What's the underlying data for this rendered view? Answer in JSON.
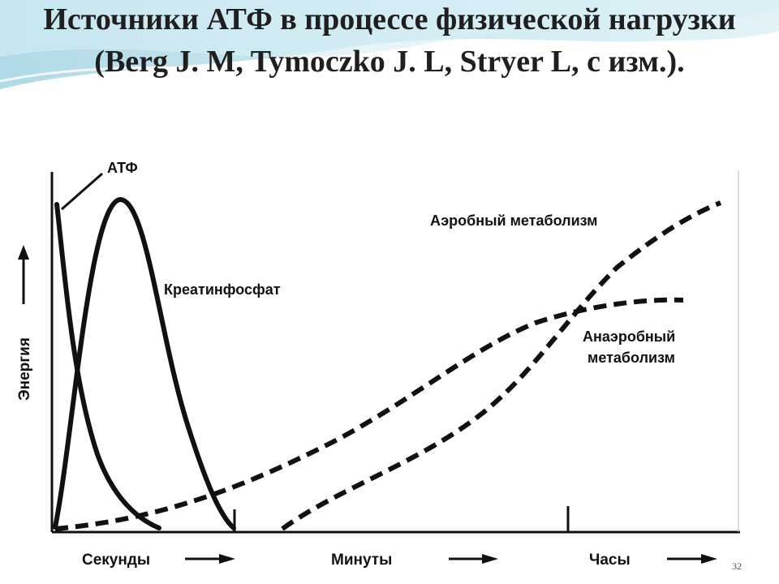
{
  "slide": {
    "title": "Источники АТФ в процессе физической нагрузки (Berg J. M, Tymoczko J. L, Stryer L, с изм.).",
    "page_number": "32",
    "accent_color": "#7fc6d8"
  },
  "diagram": {
    "y_axis_label": "Энергия",
    "curve_labels": {
      "atp": "АТФ",
      "creatine_phosphate": "Креатинфосфат",
      "aerobic": "Аэробный метаболизм",
      "anaerobic_line1": "Анаэробный",
      "anaerobic_line2": "метаболизм"
    },
    "time_labels": {
      "seconds": "Секунды",
      "minutes": "Минуты",
      "hours": "Часы"
    }
  }
}
